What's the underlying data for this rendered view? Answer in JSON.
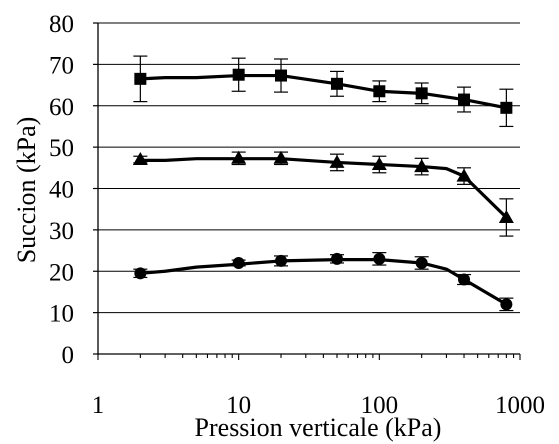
{
  "chart_data": {
    "type": "line",
    "xlabel": "Pression verticale (kPa)",
    "ylabel": "Succion (kPa)",
    "xscale": "log",
    "xlim": [
      1,
      1000
    ],
    "ylim": [
      0,
      80
    ],
    "xticks": [
      1,
      10,
      100,
      1000
    ],
    "xtick_labels": [
      "1",
      "10",
      "100",
      "1000"
    ],
    "yticks": [
      0,
      10,
      20,
      30,
      40,
      50,
      60,
      70,
      80
    ],
    "ytick_labels": [
      "0",
      "10",
      "20",
      "30",
      "40",
      "50",
      "60",
      "70",
      "80"
    ],
    "grid": "horizontal",
    "legend": "none",
    "line_color": "#000000",
    "series": [
      {
        "marker": "square",
        "x": [
          2,
          10,
          20,
          50,
          100,
          200,
          400,
          800
        ],
        "y": [
          66.5,
          67.5,
          67.3,
          65.3,
          63.5,
          63,
          61.5,
          59.5
        ],
        "err": [
          5.5,
          4,
          4,
          3,
          2.5,
          2.5,
          3,
          4.5
        ],
        "curve": [
          [
            2,
            66.5
          ],
          [
            3,
            66.8
          ],
          [
            5,
            66.8
          ],
          [
            10,
            67.3
          ],
          [
            20,
            67.3
          ],
          [
            50,
            65.3
          ],
          [
            100,
            63.5
          ],
          [
            200,
            63
          ],
          [
            400,
            61.5
          ],
          [
            800,
            59.5
          ]
        ]
      },
      {
        "marker": "triangle",
        "x": [
          2,
          10,
          20,
          50,
          100,
          200,
          400,
          800
        ],
        "y": [
          47,
          47.3,
          47.3,
          46.3,
          45.8,
          45.3,
          43,
          33
        ],
        "err": [
          0.8,
          1.5,
          1.5,
          2,
          2,
          2,
          2,
          4.5
        ],
        "curve": [
          [
            2,
            46.8
          ],
          [
            3,
            46.8
          ],
          [
            5,
            47.2
          ],
          [
            10,
            47.2
          ],
          [
            20,
            47.2
          ],
          [
            50,
            46.3
          ],
          [
            100,
            45.8
          ],
          [
            200,
            45.3
          ],
          [
            300,
            44.8
          ],
          [
            400,
            43
          ],
          [
            800,
            33
          ]
        ]
      },
      {
        "marker": "circle",
        "x": [
          2,
          10,
          20,
          50,
          100,
          200,
          400,
          800
        ],
        "y": [
          19.5,
          22,
          22.5,
          23,
          23,
          22,
          18,
          12
        ],
        "err": [
          1,
          0.7,
          1.2,
          1,
          1.5,
          1.5,
          1.2,
          1.5
        ],
        "curve": [
          [
            2,
            19.5
          ],
          [
            3,
            20
          ],
          [
            5,
            21
          ],
          [
            10,
            21.7
          ],
          [
            20,
            22.5
          ],
          [
            50,
            22.8
          ],
          [
            100,
            22.8
          ],
          [
            200,
            22
          ],
          [
            300,
            20.5
          ],
          [
            400,
            18
          ],
          [
            800,
            12
          ]
        ]
      }
    ]
  }
}
